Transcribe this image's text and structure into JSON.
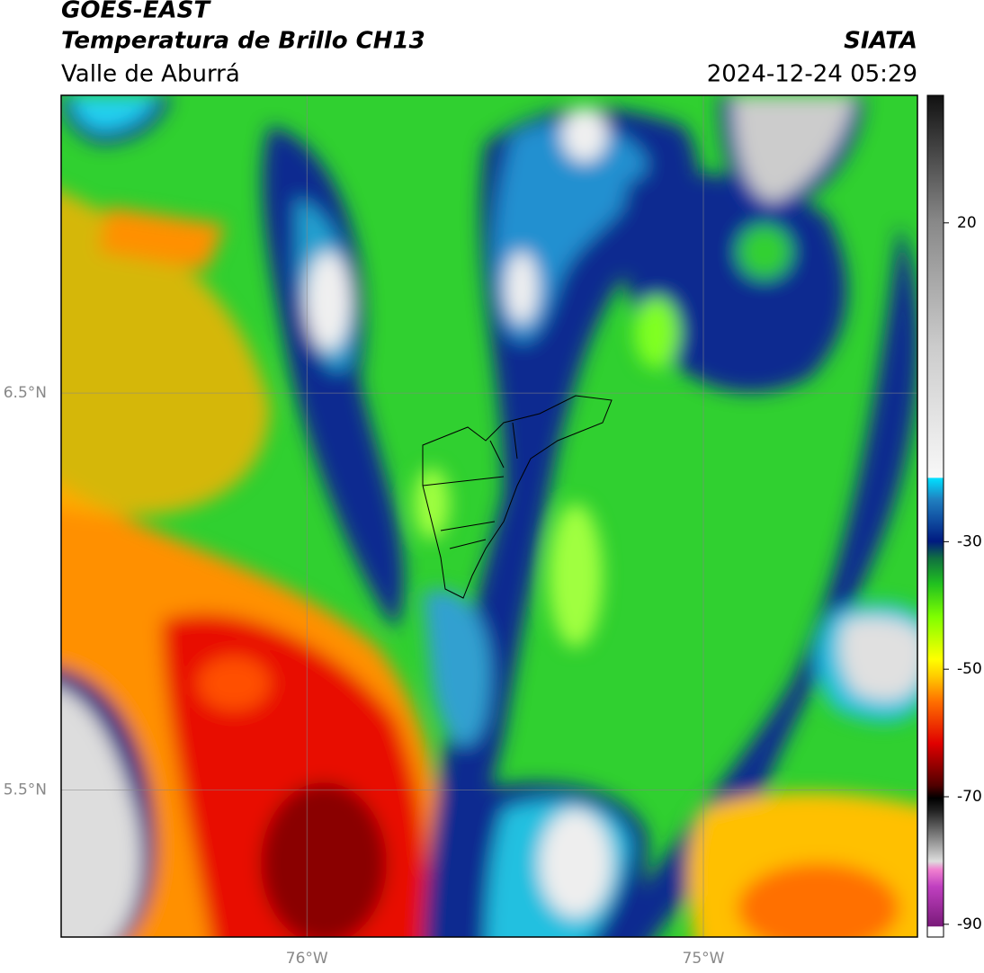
{
  "header": {
    "title": "GOES-EAST",
    "subtitle": "Temperatura de Brillo CH13",
    "region": "Valle de Aburrá",
    "source": "SIATA",
    "datetime": "2024-12-24 05:29"
  },
  "map": {
    "xlim": [
      -76.62,
      -74.46
    ],
    "ylim": [
      5.13,
      7.25
    ],
    "xticks": [
      {
        "value": -76,
        "label": "76°W"
      },
      {
        "value": -75,
        "label": "75°W"
      }
    ],
    "yticks": [
      {
        "value": 6.5,
        "label": "6.5°N"
      },
      {
        "value": 5.5,
        "label": "5.5°N"
      }
    ],
    "grid": true
  },
  "colorbar": {
    "lim": [
      -92,
      40
    ],
    "ticks": [
      20,
      -30,
      -50,
      -70,
      -90
    ]
  }
}
